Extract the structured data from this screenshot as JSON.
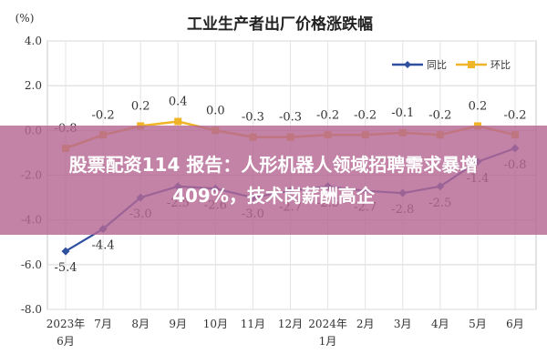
{
  "chart_data": {
    "type": "line",
    "title": "工业生产者出厂价格涨跌幅",
    "unit_label": "(%)",
    "ylim": [
      -8.0,
      4.0
    ],
    "y_ticks": [
      "4.0",
      "2.0",
      "0.0",
      "-2.0",
      "-4.0",
      "-6.0",
      "-8.0"
    ],
    "y_tick_values": [
      4,
      2,
      0,
      -2,
      -4,
      -6,
      -8
    ],
    "categories": [
      [
        "2023年",
        "6月"
      ],
      [
        "7月"
      ],
      [
        "8月"
      ],
      [
        "9月"
      ],
      [
        "10月"
      ],
      [
        "11月"
      ],
      [
        "12月"
      ],
      [
        "2024年",
        "1月"
      ],
      [
        "2月"
      ],
      [
        "3月"
      ],
      [
        "4月"
      ],
      [
        "5月"
      ],
      [
        "6月"
      ]
    ],
    "grid": true,
    "legend_position": "top-right",
    "series": [
      {
        "name": "同比",
        "color": "#2f4f9f",
        "values": [
          -5.4,
          -4.4,
          -3.0,
          -2.5,
          -2.6,
          -3.0,
          -2.7,
          -2.5,
          -2.7,
          -2.8,
          -2.5,
          -1.4,
          -0.8
        ],
        "labels": [
          "-5.4",
          "-4.4",
          "-3.0",
          "-2.5",
          "-2.6",
          "-3.0",
          "-2.7",
          "-2.5",
          "-2.7",
          "-2.8",
          "-2.5",
          "-1.4",
          "-0.8"
        ]
      },
      {
        "name": "环比",
        "color": "#f0b428",
        "values": [
          -0.8,
          -0.2,
          0.2,
          0.4,
          0.0,
          -0.3,
          -0.3,
          -0.2,
          -0.2,
          -0.1,
          -0.2,
          0.2,
          -0.2
        ],
        "labels": [
          "-0.8",
          "-0.2",
          "0.2",
          "0.4",
          "0.0",
          "-0.3",
          "-0.3",
          "-0.2",
          "-0.2",
          "-0.1",
          "-0.2",
          "0.2",
          "-0.2"
        ]
      }
    ]
  },
  "banner": {
    "line1": "股票配资114 报告：人形机器人领域招聘需求暴增",
    "line2": "409%，技术岗薪酬高企"
  }
}
